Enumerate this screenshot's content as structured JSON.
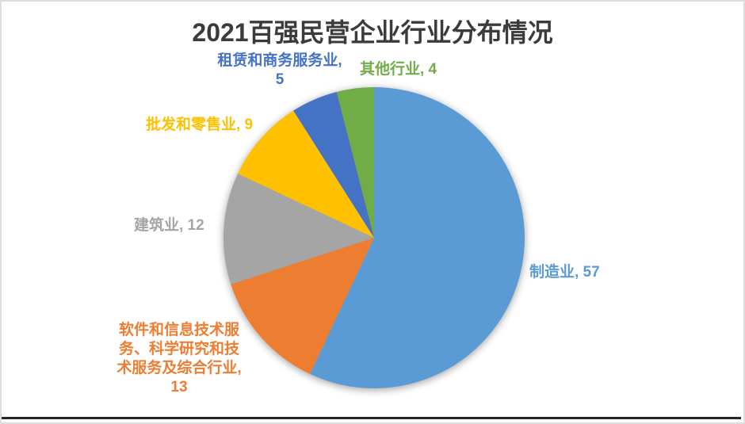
{
  "chart_data": {
    "type": "pie",
    "title": "2021百强民营企业行业分布情况",
    "categories": [
      "制造业",
      "软件和信息技术服务、科学研究和技术服务及综合行业",
      "建筑业",
      "批发和零售业",
      "租赁和商务服务业",
      "其他行业"
    ],
    "values": [
      57,
      13,
      12,
      9,
      5,
      4
    ],
    "total": 100,
    "colors": [
      "#5B9BD5",
      "#ED7D31",
      "#A5A5A5",
      "#FFC000",
      "#4472C4",
      "#70AD47"
    ],
    "data_labels": [
      "制造业, 57",
      "软件和信息技术服\n务、科学研究和技\n术服务及综合行业,\n13",
      "建筑业, 12",
      "批发和零售业, 9",
      "租赁和商务服务业,\n5",
      "其他行业, 4"
    ],
    "start_angle_deg": 0,
    "direction": "clockwise",
    "legend": "none",
    "data_label_position": "outside-end",
    "title_color": "#3B3B3B",
    "background": "#FFFFFF"
  }
}
